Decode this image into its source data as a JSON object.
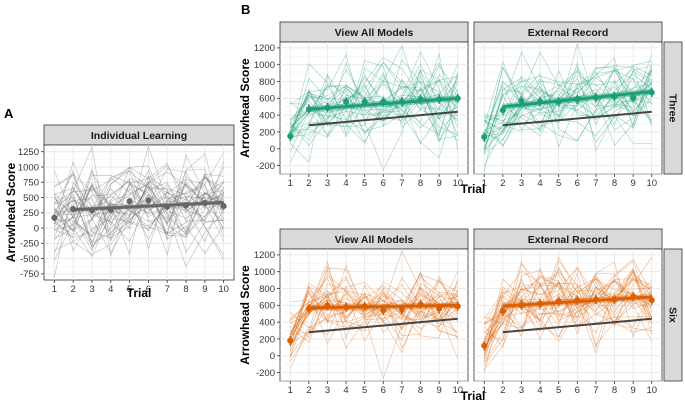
{
  "chart_data": [
    {
      "panel_label": "A",
      "title": "Individual Learning",
      "type": "line",
      "xlabel": "Trial",
      "ylabel": "Arrowhead Score",
      "x": [
        1,
        2,
        3,
        4,
        5,
        6,
        7,
        8,
        9,
        10
      ],
      "xticks": [
        "1",
        "2",
        "3",
        "4",
        "5",
        "6",
        "7",
        "8",
        "9",
        "10"
      ],
      "ylim": [
        -850,
        1360
      ],
      "yticks": [
        -750,
        -500,
        -250,
        0,
        250,
        500,
        750,
        1000,
        1250
      ],
      "color": "#666666",
      "mean": [
        170,
        310,
        290,
        300,
        440,
        450,
        350,
        370,
        410,
        360
      ],
      "fit": [
        300,
        420
      ],
      "individual_lines": 40,
      "spread": 380
    },
    {
      "panel_label": "B",
      "title": "View All Models",
      "facet": "Three",
      "type": "line",
      "xlabel": "Trial",
      "ylabel": "Arrowhead Score",
      "x": [
        1,
        2,
        3,
        4,
        5,
        6,
        7,
        8,
        9,
        10
      ],
      "xticks": [
        "1",
        "2",
        "3",
        "4",
        "5",
        "6",
        "7",
        "8",
        "9",
        "10"
      ],
      "ylim": [
        -300,
        1270
      ],
      "yticks": [
        -200,
        0,
        200,
        400,
        600,
        800,
        1000,
        1200
      ],
      "color": "#1b9e77",
      "mean": [
        150,
        470,
        490,
        560,
        560,
        560,
        560,
        590,
        590,
        600
      ],
      "fit": [
        470,
        600
      ],
      "individual_fit": [
        280,
        440
      ],
      "individual_lines": 32,
      "spread": 240
    },
    {
      "title": "External Record",
      "facet": "Three",
      "type": "line",
      "x": [
        1,
        2,
        3,
        4,
        5,
        6,
        7,
        8,
        9,
        10
      ],
      "xticks": [
        "1",
        "2",
        "3",
        "4",
        "5",
        "6",
        "7",
        "8",
        "9",
        "10"
      ],
      "ylim": [
        -300,
        1270
      ],
      "yticks": [
        -200,
        0,
        200,
        400,
        600,
        800,
        1000,
        1200
      ],
      "color": "#1b9e77",
      "mean": [
        140,
        460,
        570,
        560,
        560,
        590,
        610,
        620,
        610,
        670
      ],
      "fit": [
        500,
        680
      ],
      "individual_fit": [
        280,
        440
      ],
      "individual_lines": 32,
      "spread": 240
    },
    {
      "title": "View All Models",
      "facet": "Six",
      "type": "line",
      "xlabel": "Trial",
      "ylabel": "Arrowhead Score",
      "x": [
        1,
        2,
        3,
        4,
        5,
        6,
        7,
        8,
        9,
        10
      ],
      "xticks": [
        "1",
        "2",
        "3",
        "4",
        "5",
        "6",
        "7",
        "8",
        "9",
        "10"
      ],
      "ylim": [
        -300,
        1270
      ],
      "yticks": [
        -200,
        0,
        200,
        400,
        600,
        800,
        1000,
        1200
      ],
      "color": "#d95f02",
      "mean": [
        180,
        560,
        600,
        580,
        590,
        540,
        550,
        610,
        560,
        590
      ],
      "fit": [
        570,
        600
      ],
      "individual_fit": [
        280,
        440
      ],
      "individual_lines": 32,
      "spread": 220
    },
    {
      "title": "External Record",
      "facet": "Six",
      "type": "line",
      "x": [
        1,
        2,
        3,
        4,
        5,
        6,
        7,
        8,
        9,
        10
      ],
      "xticks": [
        "1",
        "2",
        "3",
        "4",
        "5",
        "6",
        "7",
        "8",
        "9",
        "10"
      ],
      "ylim": [
        -300,
        1270
      ],
      "yticks": [
        -200,
        0,
        200,
        400,
        600,
        800,
        1000,
        1200
      ],
      "color": "#d95f02",
      "mean": [
        120,
        530,
        600,
        620,
        650,
        660,
        670,
        670,
        700,
        660
      ],
      "fit": [
        590,
        700
      ],
      "individual_fit": [
        280,
        440
      ],
      "individual_lines": 32,
      "spread": 220
    }
  ],
  "facet_labels": {
    "top": "Three",
    "bottom": "Six"
  }
}
